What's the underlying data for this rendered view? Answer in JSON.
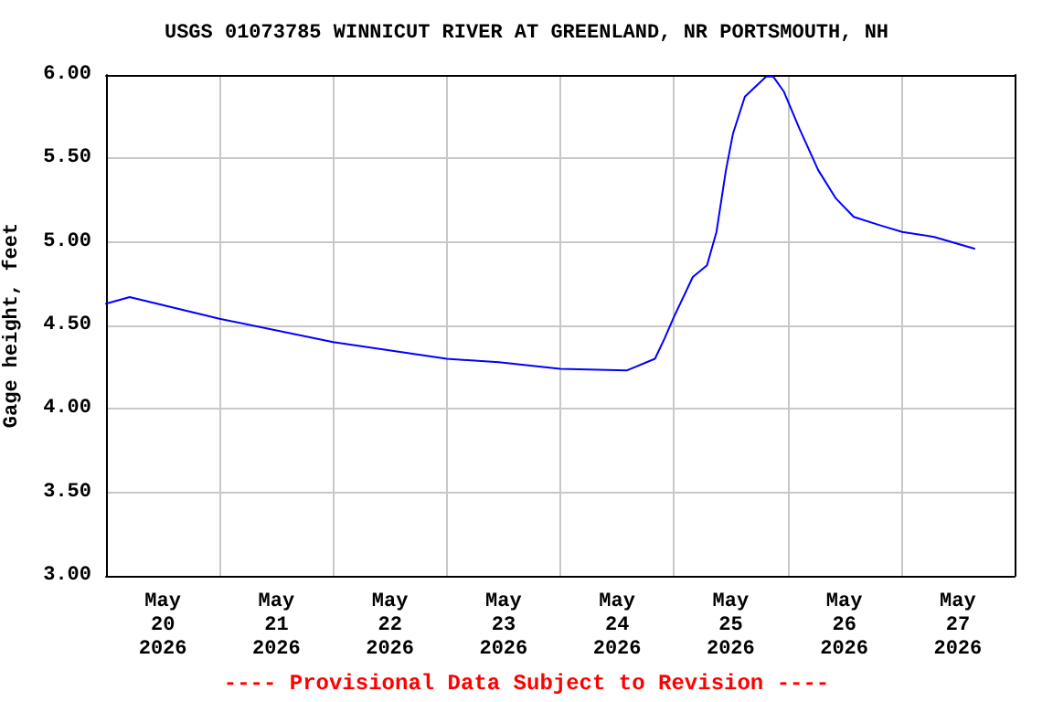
{
  "chart_data": {
    "type": "line",
    "title": "USGS 01073785 WINNICUT RIVER AT GREENLAND, NR PORTSMOUTH, NH",
    "ylabel": "Gage height, feet",
    "annotations": [
      "---- Provisional Data Subject to Revision ----"
    ],
    "x": [
      "2026-05-20T00:00",
      "2026-05-20T05:00",
      "2026-05-21T00:00",
      "2026-05-22T00:00",
      "2026-05-23T00:00",
      "2026-05-23T11:00",
      "2026-05-24T00:00",
      "2026-05-24T14:00",
      "2026-05-24T20:00",
      "2026-05-24T22:00",
      "2026-05-25T00:00",
      "2026-05-25T04:00",
      "2026-05-25T07:00",
      "2026-05-25T09:00",
      "2026-05-25T11:00",
      "2026-05-25T12:30",
      "2026-05-25T15:00",
      "2026-05-25T19:30",
      "2026-05-25T21:00",
      "2026-05-25T23:15",
      "2026-05-26T02:30",
      "2026-05-26T06:30",
      "2026-05-26T10:15",
      "2026-05-26T14:00",
      "2026-05-26T19:30",
      "2026-05-27T00:15",
      "2026-05-27T07:00",
      "2026-05-27T15:30"
    ],
    "series": [
      {
        "color": "#0000ff",
        "values": [
          4.63,
          4.67,
          4.54,
          4.4,
          4.3,
          4.28,
          4.24,
          4.23,
          4.3,
          4.42,
          4.55,
          4.79,
          4.86,
          5.06,
          5.43,
          5.65,
          5.87,
          5.99,
          5.99,
          5.9,
          5.68,
          5.43,
          5.26,
          5.15,
          5.1,
          5.06,
          5.03,
          4.96
        ]
      }
    ],
    "xlim": [
      "2026-05-20T00:00",
      "2026-05-28T00:00"
    ],
    "xticks": [
      {
        "value": "2026-05-20T12:00",
        "label": "May\n20\n2026"
      },
      {
        "value": "2026-05-21T12:00",
        "label": "May\n21\n2026"
      },
      {
        "value": "2026-05-22T12:00",
        "label": "May\n22\n2026"
      },
      {
        "value": "2026-05-23T12:00",
        "label": "May\n23\n2026"
      },
      {
        "value": "2026-05-24T12:00",
        "label": "May\n24\n2026"
      },
      {
        "value": "2026-05-25T12:00",
        "label": "May\n25\n2026"
      },
      {
        "value": "2026-05-26T12:00",
        "label": "May\n26\n2026"
      },
      {
        "value": "2026-05-27T12:00",
        "label": "May\n27\n2026"
      },
      {
        "value": "2026-05-21T00:00",
        "label": null
      },
      {
        "value": "2026-05-22T00:00",
        "label": null
      },
      {
        "value": "2026-05-23T00:00",
        "label": null
      },
      {
        "value": "2026-05-24T00:00",
        "label": null
      },
      {
        "value": "2026-05-25T00:00",
        "label": null
      },
      {
        "value": "2026-05-26T00:00",
        "label": null
      },
      {
        "value": "2026-05-27T00:00",
        "label": null
      }
    ],
    "ylim": [
      3,
      6
    ],
    "yticks": [
      {
        "value": 3,
        "label": "3.00"
      },
      {
        "value": 3.5,
        "label": "3.50"
      },
      {
        "value": 4,
        "label": "4.00"
      },
      {
        "value": 4.5,
        "label": "4.50"
      },
      {
        "value": 5,
        "label": "5.00"
      },
      {
        "value": 5.5,
        "label": "5.50"
      },
      {
        "value": 6,
        "label": "6.00"
      }
    ],
    "grid": true,
    "marker": "none",
    "line_style": "solid"
  }
}
